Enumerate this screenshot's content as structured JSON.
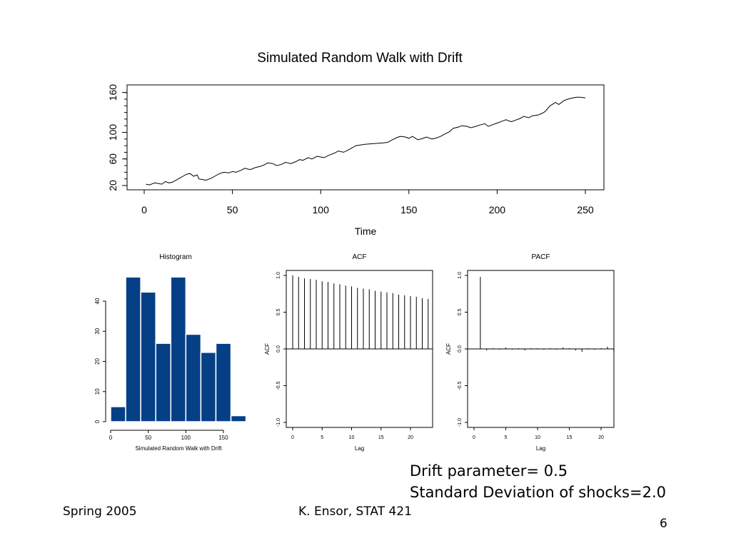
{
  "slide": {
    "note_line1": "Drift parameter= 0.5",
    "note_line2": "Standard Deviation of shocks=2.0",
    "footer_left": "Spring 2005",
    "footer_center": "K. Ensor, STAT 421",
    "page_number": "6"
  },
  "chart_data": [
    {
      "id": "walk",
      "type": "line",
      "title": "Simulated Random Walk with Drift",
      "xlabel": "Time",
      "ylabel": "",
      "xlim": [
        0,
        250
      ],
      "ylim": [
        20,
        165
      ],
      "xticks": [
        0,
        50,
        100,
        150,
        200,
        250
      ],
      "yticks": [
        20,
        60,
        100,
        160
      ],
      "grid": false,
      "series": [
        {
          "x": [
            1,
            3,
            6,
            8,
            10,
            12,
            14,
            16,
            18,
            20,
            22,
            24,
            26,
            28,
            30,
            31,
            33,
            35,
            38,
            40,
            42,
            45,
            48,
            50,
            52,
            55,
            57,
            60,
            63,
            66,
            68,
            70,
            73,
            75,
            78,
            80,
            83,
            86,
            88,
            90,
            93,
            95,
            98,
            100,
            102,
            105,
            108,
            110,
            113,
            116,
            120,
            125,
            130,
            135,
            138,
            140,
            143,
            145,
            148,
            150,
            152,
            155,
            158,
            160,
            163,
            165,
            168,
            170,
            173,
            175,
            178,
            180,
            183,
            185,
            188,
            190,
            193,
            195,
            198,
            200,
            203,
            205,
            208,
            210,
            213,
            215,
            218,
            220,
            223,
            225,
            227,
            230,
            233,
            235,
            238,
            240,
            243,
            245,
            247,
            250
          ],
          "y": [
            22,
            21,
            24,
            23,
            22,
            26,
            24,
            25,
            28,
            31,
            34,
            37,
            38,
            34,
            36,
            30,
            29,
            28,
            31,
            34,
            37,
            40,
            39,
            41,
            40,
            43,
            46,
            44,
            47,
            49,
            51,
            54,
            53,
            50,
            52,
            55,
            53,
            56,
            59,
            58,
            62,
            60,
            64,
            63,
            62,
            66,
            69,
            72,
            70,
            74,
            80,
            82,
            83,
            84,
            85,
            88,
            92,
            94,
            93,
            91,
            94,
            89,
            91,
            93,
            90,
            91,
            94,
            97,
            101,
            106,
            108,
            110,
            109,
            107,
            109,
            111,
            113,
            109,
            112,
            114,
            117,
            119,
            116,
            118,
            121,
            124,
            122,
            125,
            126,
            128,
            131,
            140,
            145,
            142,
            148,
            150,
            152,
            153,
            153,
            152
          ]
        }
      ]
    },
    {
      "id": "hist",
      "type": "bar",
      "title": "Histogram",
      "xlabel": "Simulated Random Walk with Drift",
      "ylabel": "",
      "bin_edges": [
        0,
        20,
        40,
        60,
        80,
        100,
        120,
        140,
        160,
        180
      ],
      "values": [
        5,
        48,
        43,
        26,
        48,
        29,
        23,
        26,
        2
      ],
      "xlim": [
        0,
        180
      ],
      "ylim": [
        0,
        48
      ],
      "xticks": [
        0,
        50,
        100,
        150
      ],
      "yticks": [
        0,
        10,
        20,
        30,
        40
      ],
      "colors": {
        "bar": "#053f86",
        "border": "#ffffff"
      }
    },
    {
      "id": "acf",
      "type": "bar",
      "title": "ACF",
      "xlabel": "Lag",
      "ylabel": "ACF",
      "lags": [
        0,
        1,
        2,
        3,
        4,
        5,
        6,
        7,
        8,
        9,
        10,
        11,
        12,
        13,
        14,
        15,
        16,
        17,
        18,
        19,
        20,
        21,
        22,
        23
      ],
      "values": [
        1.0,
        0.98,
        0.96,
        0.95,
        0.94,
        0.92,
        0.91,
        0.89,
        0.88,
        0.86,
        0.85,
        0.83,
        0.82,
        0.81,
        0.79,
        0.78,
        0.77,
        0.76,
        0.74,
        0.73,
        0.72,
        0.71,
        0.69,
        0.68
      ],
      "xlim": [
        -1,
        24
      ],
      "ylim": [
        -1.0,
        1.0
      ],
      "xticks": [
        0,
        5,
        10,
        15,
        20
      ],
      "yticks": [
        -1.0,
        -0.5,
        0.0,
        0.5,
        1.0
      ],
      "ytick_labels": [
        "-1.0",
        "-0.5",
        "0.0",
        "0.5",
        "1.0"
      ]
    },
    {
      "id": "pacf",
      "type": "bar",
      "title": "PACF",
      "xlabel": "Lag",
      "ylabel": "ACF",
      "lags": [
        1,
        2,
        3,
        4,
        5,
        6,
        7,
        8,
        9,
        10,
        11,
        12,
        13,
        14,
        15,
        16,
        17,
        18,
        19,
        20,
        21,
        22
      ],
      "values": [
        0.98,
        -0.02,
        0.01,
        -0.01,
        0.02,
        -0.01,
        0.01,
        -0.02,
        0.01,
        0.01,
        -0.01,
        0.01,
        -0.01,
        0.02,
        0.01,
        -0.02,
        -0.04,
        0.01,
        -0.01,
        0.01,
        0.03,
        -0.03
      ],
      "xlim": [
        -1,
        24
      ],
      "ylim": [
        -1.0,
        1.0
      ],
      "xticks": [
        0,
        5,
        10,
        15,
        20
      ],
      "yticks": [
        -1.0,
        -0.5,
        0.0,
        0.5,
        1.0
      ],
      "ytick_labels": [
        "-1.0",
        "-0.5",
        "0.0",
        "0.5",
        "1.0"
      ]
    }
  ]
}
